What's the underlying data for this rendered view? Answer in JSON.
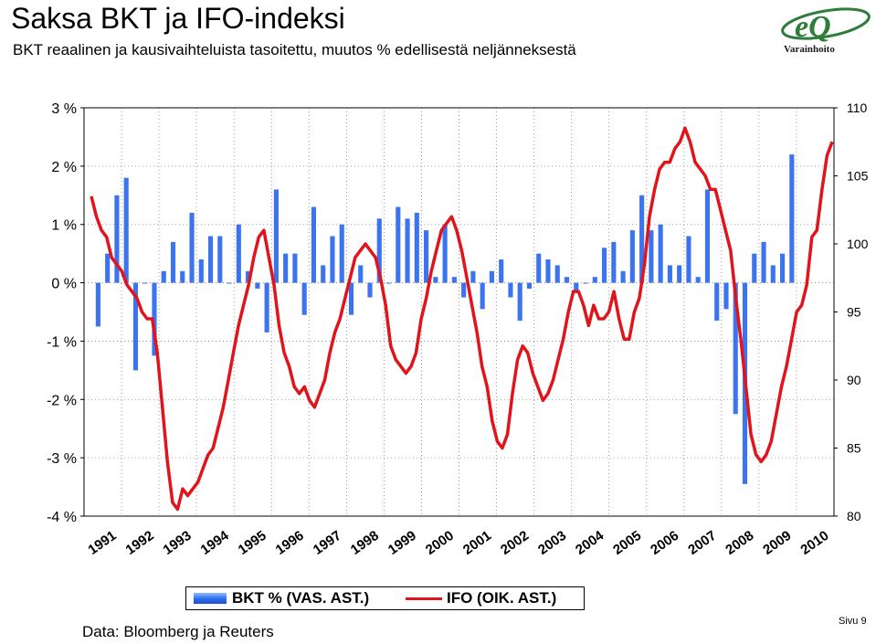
{
  "header": {
    "title": "Saksa BKT ja IFO-indeksi",
    "subtitle": "BKT reaalinen ja kausivaihteluista tasoitettu, muutos % edellisestä neljänneksestä"
  },
  "logo": {
    "text": "eQ",
    "sub": "Varainhoito",
    "color": "#2e7d3a"
  },
  "footer": {
    "source": "Data: Bloomberg ja Reuters",
    "page": "Sivu 9"
  },
  "legend": {
    "bkt_label": "BKT % (VAS. AST.)",
    "ifo_label": "IFO (OIK. AST.)"
  },
  "colors": {
    "bar": "#3c74f0",
    "line": "#e0141a"
  },
  "chart_data": {
    "type": "bar+line",
    "left_axis": {
      "ticks": [
        "3 %",
        "2 %",
        "1 %",
        "0 %",
        "-1 %",
        "-2 %",
        "-3 %",
        "-4 %"
      ],
      "range": [
        -4,
        3
      ]
    },
    "right_axis": {
      "ticks": [
        "110",
        "105",
        "100",
        "95",
        "90",
        "85",
        "80"
      ],
      "range": [
        80,
        110
      ]
    },
    "x_ticks": [
      "1991",
      "1992",
      "1993",
      "1994",
      "1995",
      "1996",
      "1997",
      "1998",
      "1999",
      "2000",
      "2001",
      "2002",
      "2003",
      "2004",
      "2005",
      "2006",
      "2007",
      "2008",
      "2009",
      "2010"
    ],
    "x_start_year": 1991,
    "series": [
      {
        "name": "BKT % (VAS. AST.)",
        "axis": "left",
        "kind": "bar",
        "values": [
          -0.75,
          0.5,
          1.5,
          1.8,
          -1.5,
          0.0,
          -1.25,
          0.2,
          0.7,
          0.2,
          1.2,
          0.4,
          0.8,
          0.8,
          0.0,
          1.0,
          0.2,
          -0.1,
          -0.85,
          1.6,
          0.5,
          0.5,
          -0.55,
          1.3,
          0.3,
          0.8,
          1.0,
          -0.55,
          0.3,
          -0.25,
          1.1,
          0.0,
          1.3,
          1.1,
          1.2,
          0.9,
          0.1,
          1.0,
          0.1,
          -0.25,
          0.2,
          -0.45,
          0.2,
          0.4,
          -0.25,
          -0.65,
          -0.1,
          0.5,
          0.4,
          0.3,
          0.1,
          -0.15,
          0.0,
          0.1,
          0.6,
          0.7,
          0.2,
          0.9,
          1.5,
          0.9,
          1.0,
          0.3,
          0.3,
          0.8,
          0.1,
          1.6,
          -0.65,
          -0.45,
          -2.25,
          -3.45,
          0.5,
          0.7,
          0.3,
          0.5,
          2.2
        ]
      },
      {
        "name": "IFO (OIK. AST.)",
        "axis": "right",
        "kind": "line",
        "values": [
          103.5,
          102,
          101,
          100.5,
          99,
          98.5,
          98,
          97,
          96.5,
          96,
          95,
          94.5,
          94.5,
          92,
          88,
          84,
          81,
          80.5,
          82,
          81.5,
          82,
          82.5,
          83.5,
          84.5,
          85,
          86.5,
          88,
          90,
          92,
          94,
          95.5,
          97,
          99,
          100.5,
          101,
          99,
          97,
          94,
          92,
          91,
          89.5,
          89,
          89.5,
          88.5,
          88,
          89,
          90,
          92,
          93.5,
          94.5,
          96,
          97.5,
          99,
          99.5,
          100,
          99.5,
          99,
          97.5,
          95.5,
          92.5,
          91.5,
          91,
          90.5,
          91,
          92,
          94.5,
          96,
          98,
          99.5,
          101,
          101.5,
          102,
          101,
          99.5,
          97.5,
          95.5,
          93.5,
          91,
          89.5,
          87,
          85.5,
          85,
          86,
          89,
          91.5,
          92.5,
          92,
          90.5,
          89.5,
          88.5,
          89,
          90,
          91.5,
          93,
          95,
          96.5,
          96.5,
          95.5,
          94,
          95.5,
          94.5,
          94.5,
          95,
          96.5,
          94.5,
          93,
          93,
          95,
          96,
          98.5,
          102,
          104,
          105.5,
          106,
          106,
          107,
          107.5,
          108.5,
          107.5,
          106,
          105.5,
          105,
          104,
          104,
          102.5,
          101,
          99.5,
          96,
          93,
          89.5,
          86,
          84.5,
          84,
          84.5,
          85.5,
          87.5,
          89.5,
          91,
          93,
          95,
          95.5,
          97,
          100.5,
          101,
          104,
          106.5,
          107.5
        ]
      }
    ]
  }
}
